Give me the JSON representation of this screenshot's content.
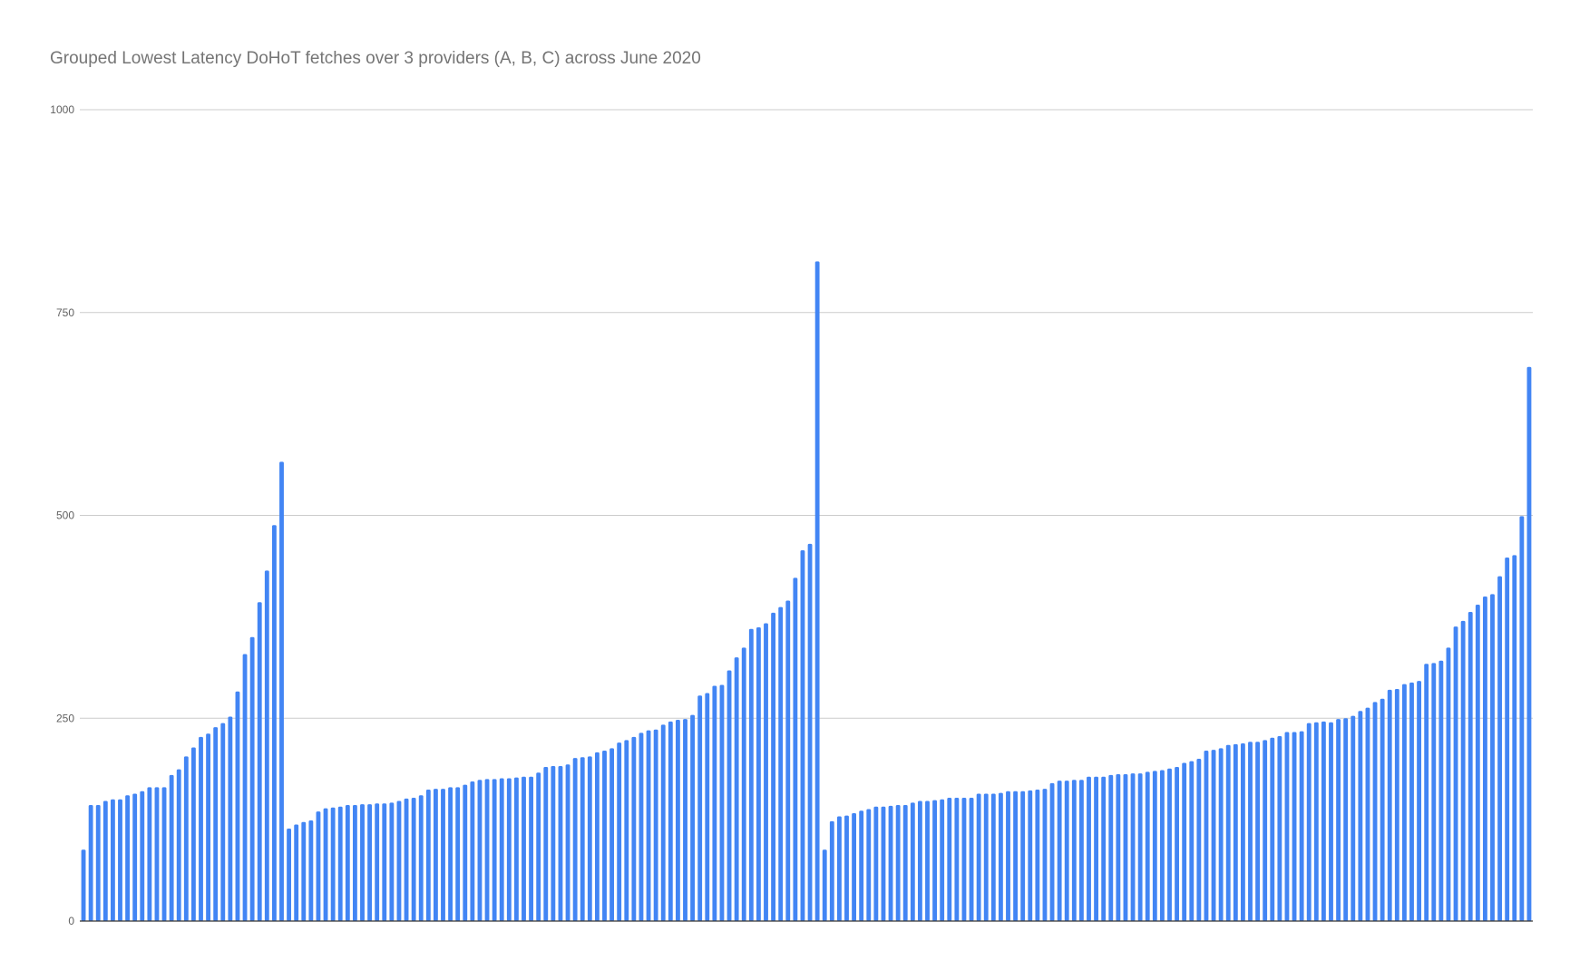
{
  "chart_data": {
    "type": "bar",
    "title": "Grouped Lowest Latency DoHoT fetches over 3 providers (A, B, C) across June 2020",
    "xlabel": "",
    "ylabel": "",
    "ylim": [
      0,
      1000
    ],
    "yticks": [
      0,
      250,
      500,
      750,
      1000
    ],
    "grid": true,
    "legend": "none",
    "bar_color": "#4285f4",
    "grid_color": "#cccccc",
    "axis_color": "#333333",
    "values": [
      88,
      143,
      143,
      148,
      150,
      150,
      155,
      157,
      160,
      165,
      165,
      165,
      180,
      187,
      203,
      214,
      227,
      231,
      239,
      244,
      252,
      283,
      329,
      350,
      393,
      432,
      488,
      566,
      114,
      119,
      122,
      124,
      135,
      139,
      140,
      141,
      143,
      143,
      144,
      144,
      145,
      145,
      146,
      148,
      151,
      152,
      155,
      162,
      163,
      163,
      165,
      165,
      168,
      172,
      174,
      175,
      175,
      176,
      176,
      177,
      178,
      178,
      183,
      190,
      191,
      191,
      193,
      201,
      202,
      203,
      208,
      210,
      213,
      220,
      223,
      227,
      232,
      235,
      236,
      242,
      246,
      248,
      249,
      254,
      278,
      281,
      290,
      291,
      309,
      325,
      337,
      360,
      362,
      367,
      380,
      387,
      395,
      423,
      457,
      465,
      813,
      88,
      123,
      129,
      130,
      133,
      136,
      138,
      141,
      141,
      142,
      143,
      143,
      146,
      148,
      148,
      149,
      150,
      152,
      152,
      152,
      152,
      157,
      157,
      157,
      158,
      160,
      160,
      160,
      161,
      162,
      163,
      170,
      173,
      173,
      174,
      174,
      178,
      178,
      178,
      180,
      181,
      181,
      182,
      182,
      184,
      185,
      186,
      188,
      190,
      195,
      197,
      200,
      210,
      211,
      213,
      217,
      218,
      219,
      221,
      221,
      223,
      226,
      228,
      233,
      233,
      234,
      244,
      245,
      246,
      245,
      249,
      250,
      253,
      259,
      263,
      270,
      274,
      285,
      286,
      292,
      294,
      296,
      317,
      318,
      321,
      337,
      363,
      370,
      381,
      390,
      400,
      403,
      425,
      448,
      451,
      499,
      683
    ]
  }
}
